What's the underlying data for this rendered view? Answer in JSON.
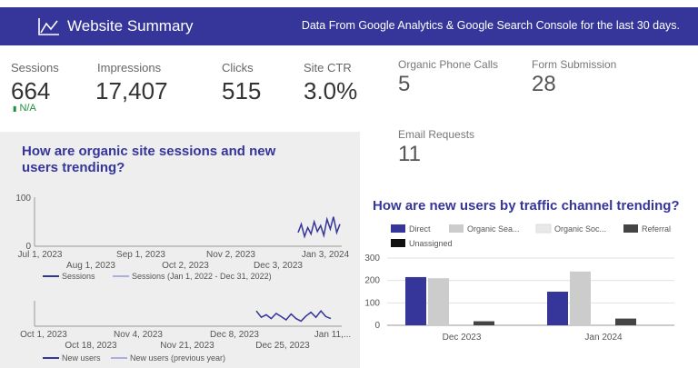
{
  "header": {
    "title": "Website Summary",
    "description": "Data From Google Analytics & Google Search Console for the last 30 days."
  },
  "kpis": {
    "sessions": {
      "label": "Sessions",
      "value": "664",
      "delta": "N/A"
    },
    "impressions": {
      "label": "Impressions",
      "value": "17,407"
    },
    "clicks": {
      "label": "Clicks",
      "value": "515"
    },
    "site_ctr": {
      "label": "Site CTR",
      "value": "3.0%"
    },
    "organic_phone_calls": {
      "label": "Organic Phone Calls",
      "value": "5"
    },
    "form_submission": {
      "label": "Form Submission",
      "value": "28"
    },
    "email_requests": {
      "label": "Email Requests",
      "value": "11"
    }
  },
  "colors": {
    "accent": "#35359a",
    "direct": "#35359a",
    "organic_search": "#cccccc",
    "organic_social": "#e8e8e8",
    "referral": "#444444",
    "unassigned": "#111111",
    "positive": "#1e8e3e"
  },
  "chart_data": [
    {
      "type": "line",
      "title": "How are organic site sessions and new users trending?",
      "ylim": [
        0,
        100
      ],
      "yticks": [
        "100",
        "0"
      ],
      "xticks_row1": [
        "Jul 1, 2023",
        "Sep 1, 2023",
        "Nov 2, 2023",
        "Jan 3, 2024"
      ],
      "xticks_row2": [
        "Aug 1, 2023",
        "Oct 2, 2023",
        "Dec 3, 2023"
      ],
      "series": [
        {
          "name": "Sessions",
          "values": [
            28,
            45,
            20,
            38,
            25,
            50,
            30,
            42,
            22,
            55,
            35,
            60,
            28,
            45
          ]
        },
        {
          "name": "Sessions (Jan 1, 2022 - Dec 31, 2022)",
          "values": []
        }
      ],
      "grid": false,
      "legend": "bottom"
    },
    {
      "type": "line",
      "xticks_row1": [
        "Oct 1, 2023",
        "Nov 4, 2023",
        "Dec 8, 2023",
        "Jan 11,..."
      ],
      "xticks_row2": [
        "Oct 18, 2023",
        "Nov 21, 2023",
        "Dec 25, 2023"
      ],
      "series": [
        {
          "name": "New users",
          "values": [
            60,
            35,
            45,
            30,
            50,
            38,
            25,
            48,
            30,
            20,
            40,
            55,
            35,
            60,
            38,
            30
          ]
        },
        {
          "name": "New users (previous year)",
          "values": []
        }
      ],
      "grid": false,
      "legend": "bottom"
    },
    {
      "type": "bar",
      "title": "How are new users by traffic channel trending?",
      "categories": [
        "Dec 2023",
        "Jan 2024"
      ],
      "ylim": [
        0,
        300
      ],
      "yticks": [
        0,
        100,
        200,
        300
      ],
      "series": [
        {
          "name": "Direct",
          "values": [
            215,
            150
          ]
        },
        {
          "name": "Organic Sea...",
          "values": [
            210,
            240
          ]
        },
        {
          "name": "Organic Soc...",
          "values": [
            0,
            0
          ]
        },
        {
          "name": "Referral",
          "values": [
            18,
            30
          ]
        },
        {
          "name": "Unassigned",
          "values": [
            0,
            0
          ]
        }
      ],
      "grid": true,
      "legend": "top"
    }
  ]
}
